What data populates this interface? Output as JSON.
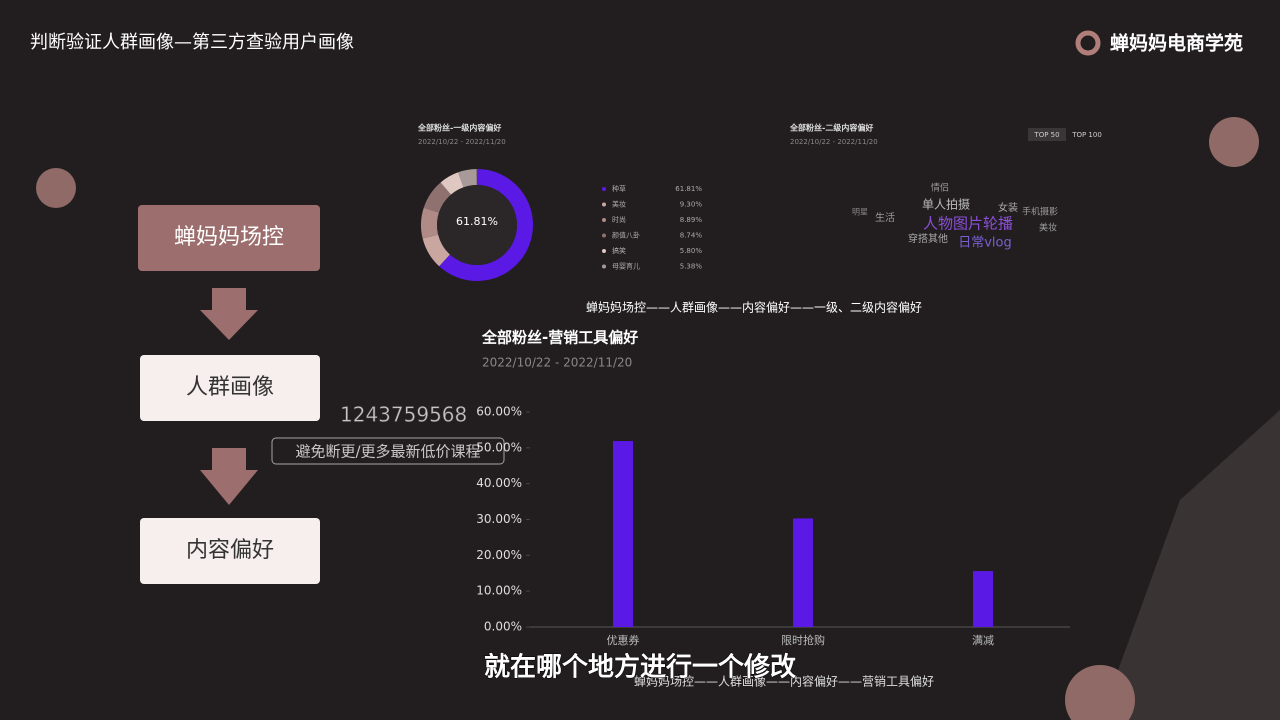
{
  "header": {
    "title": "判断验证人群画像—第三方查验用户画像",
    "logo": "蝉妈妈电商学苑"
  },
  "flow": {
    "steps": [
      "蝉妈妈场控",
      "人群画像",
      "内容偏好"
    ]
  },
  "chart_data": [
    {
      "type": "donut",
      "title": "全部粉丝-一级内容偏好",
      "subtitle": "2022/10/22 - 2022/11/20",
      "categories": [
        "种草",
        "美妆",
        "时尚",
        "颜值八卦",
        "搞笑",
        "母婴育儿"
      ],
      "values": [
        61.81,
        9.3,
        8.89,
        8.74,
        5.8,
        5.38
      ],
      "value_labels": [
        "61.81%",
        "9.30%",
        "8.89%",
        "8.74%",
        "5.80%",
        "5.38%"
      ],
      "colors": [
        "#5b19e6",
        "#c9a6a0",
        "#b08a86",
        "#8f7270",
        "#e0c8c2",
        "#a89a98"
      ]
    },
    {
      "type": "wordcloud",
      "title": "全部粉丝-二级内容偏好",
      "subtitle": "2022/10/22 - 2022/11/20",
      "tabs": [
        "TOP 50",
        "TOP 100"
      ],
      "words": [
        "人物图片轮播",
        "日常vlog",
        "单人拍摄",
        "穿搭其他",
        "生活",
        "女装",
        "手机摄影",
        "美妆",
        "情侣",
        "明星"
      ]
    },
    {
      "type": "bar",
      "title": "全部粉丝-营销工具偏好",
      "subtitle": "2022/10/22 - 2022/11/20",
      "categories": [
        "优惠券",
        "限时抢购",
        "满减"
      ],
      "values": [
        51.9,
        30.3,
        15.6
      ],
      "color": "#5b19e6",
      "ylim": [
        0,
        60
      ],
      "yticks": [
        {
          "value": 0,
          "label": "0.00%"
        },
        {
          "value": 10,
          "label": "10.00%"
        },
        {
          "value": 20,
          "label": "20.00%"
        },
        {
          "value": 30,
          "label": "30.00%"
        },
        {
          "value": 40,
          "label": "40.00%"
        },
        {
          "value": 50,
          "label": "50.00%"
        },
        {
          "value": 60,
          "label": "60.00%"
        }
      ]
    }
  ],
  "captions": [
    "蝉妈妈场控——人群画像——内容偏好——一级、二级内容偏好",
    "蝉妈妈场控——人群画像——内容偏好——营销工具偏好"
  ],
  "watermark": {
    "id": "1243759568",
    "note": "避免断更/更多最新低价课程"
  },
  "subtitle": "就在哪个地方进行一个修改"
}
